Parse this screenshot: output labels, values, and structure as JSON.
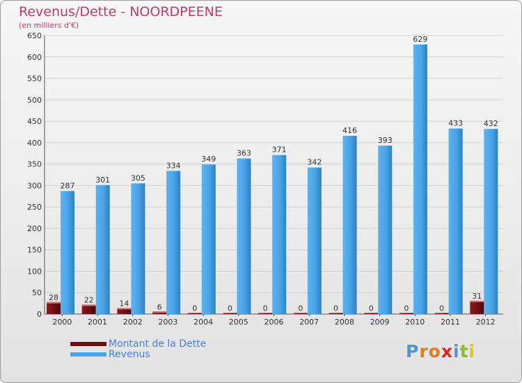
{
  "header": {
    "title": "Revenus/Dette - NOORDPEENE",
    "subtitle": "(en milliers d'€)"
  },
  "legend": {
    "items": [
      {
        "label": "Montant de la Dette",
        "color": "#6b0f12"
      },
      {
        "label": "Revenus",
        "color": "#4aa3e6"
      }
    ]
  },
  "logo": {
    "letters": [
      {
        "ch": "P",
        "color": "#4f93d8"
      },
      {
        "ch": "r",
        "color": "#e07b22"
      },
      {
        "ch": "o",
        "color": "#e07b22"
      },
      {
        "ch": "x",
        "color": "#e0261a"
      },
      {
        "ch": "i",
        "color": "#4f93d8"
      },
      {
        "ch": "t",
        "color": "#8dbb2c"
      },
      {
        "ch": "i",
        "color": "#e8c21c"
      }
    ]
  },
  "chart_data": {
    "type": "bar",
    "title": "Revenus/Dette - NOORDPEENE",
    "ylabel": "(en milliers d'€)",
    "xlabel": "",
    "ylim": [
      0,
      650
    ],
    "yticks": [
      0,
      50,
      100,
      150,
      200,
      250,
      300,
      350,
      400,
      450,
      500,
      550,
      600,
      650
    ],
    "grid": true,
    "legend_position": "bottom-left",
    "categories": [
      "2000",
      "2001",
      "2002",
      "2003",
      "2004",
      "2005",
      "2006",
      "2007",
      "2008",
      "2009",
      "2010",
      "2011",
      "2012"
    ],
    "series": [
      {
        "name": "Montant de la Dette",
        "color": "#6b0f12",
        "values": [
          28,
          22,
          14,
          6,
          0,
          0,
          0,
          0,
          0,
          0,
          0,
          0,
          31
        ]
      },
      {
        "name": "Revenus",
        "color": "#4aa3e6",
        "values": [
          287,
          301,
          305,
          334,
          349,
          363,
          371,
          342,
          416,
          393,
          629,
          433,
          432
        ]
      }
    ]
  }
}
